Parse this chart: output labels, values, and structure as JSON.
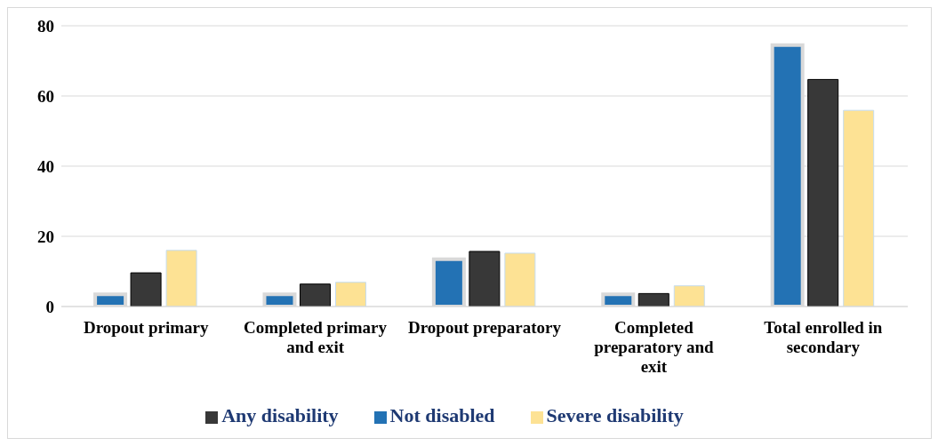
{
  "chart_data": {
    "type": "bar",
    "categories": [
      "Dropout primary",
      "Completed primary and exit",
      "Dropout preparatory",
      "Completed preparatory and exit",
      "Total enrolled in secondary"
    ],
    "series": [
      {
        "name": "Not disabled",
        "color": "#2372b4",
        "values": [
          3.5,
          3.5,
          13.5,
          3.5,
          74.5
        ]
      },
      {
        "name": "Any disability",
        "color": "#383838",
        "values": [
          9.6,
          6.4,
          15.7,
          3.7,
          64.7
        ]
      },
      {
        "name": "Severe disability",
        "color": "#fde294",
        "values": [
          16,
          6.9,
          15.2,
          5.9,
          55.9
        ]
      }
    ],
    "ylim": [
      0,
      80
    ],
    "yticks": [
      0,
      20,
      40,
      60,
      80
    ],
    "grid": "y",
    "legend": "bottom"
  }
}
